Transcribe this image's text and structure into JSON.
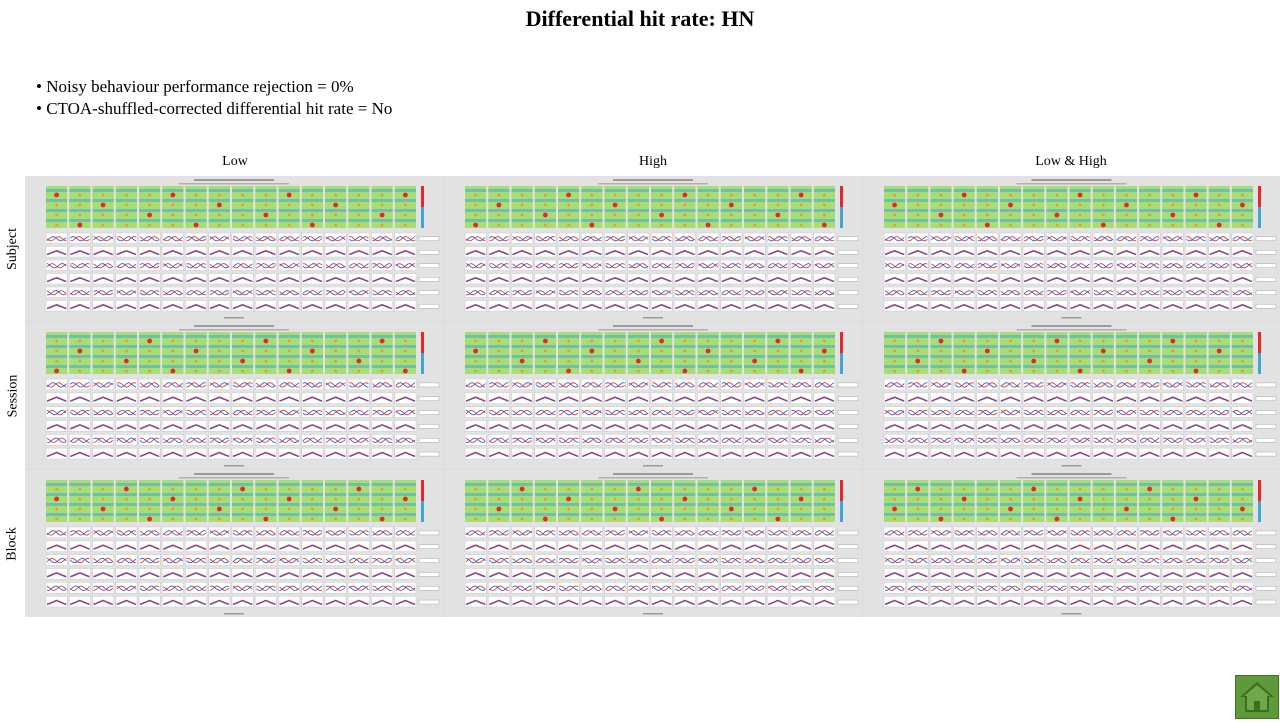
{
  "slide": {
    "title": "Differential hit rate: HN",
    "bullets": [
      "Noisy behaviour performance rejection = 0%",
      "CTOA-shuffled-corrected differential  hit rate = No"
    ]
  },
  "grid": {
    "columns": [
      "Low",
      "High",
      "Low & High"
    ],
    "rows": [
      "Subject",
      "Session",
      "Block"
    ]
  },
  "colors": {
    "heatmap_base": "#a7dd74",
    "heatmap_cool": "#3fa7d6",
    "heatmap_hot": "#e8262a",
    "line_red": "#d62728",
    "line_blue": "#1f4fd6",
    "panel_bg": "#e2e2e2",
    "home_button": "#5e9a3a"
  },
  "home_button": {
    "icon": "home-icon"
  }
}
